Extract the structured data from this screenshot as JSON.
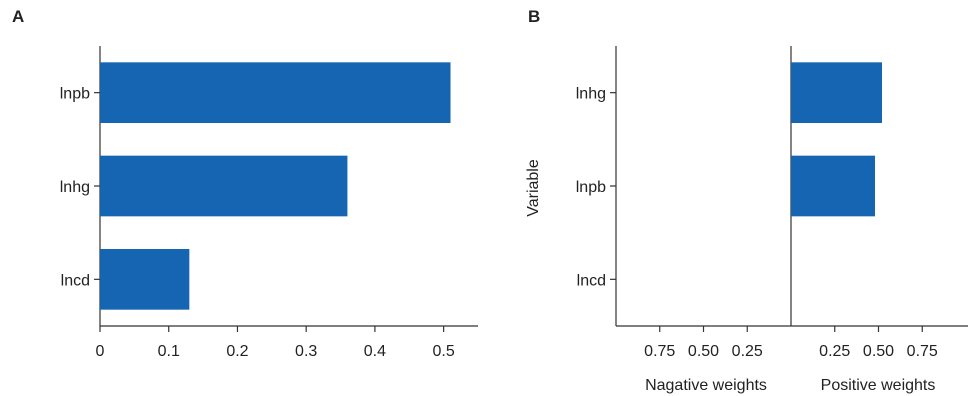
{
  "colors": {
    "bar": "#1565b3",
    "axis": "#333333",
    "text": "#222222"
  },
  "chart_data": [
    {
      "panel": "A",
      "type": "bar",
      "orientation": "horizontal",
      "categories": [
        "lnpb",
        "lnhg",
        "lncd"
      ],
      "values": [
        0.51,
        0.36,
        0.13
      ],
      "xlim": [
        0,
        0.55
      ],
      "xticks": [
        "0",
        "0.1",
        "0.2",
        "0.3",
        "0.4",
        "0.5"
      ],
      "xlabel": "",
      "ylabel": "",
      "grid": false
    },
    {
      "panel": "B",
      "type": "bar",
      "orientation": "horizontal",
      "categories": [
        "lnhg",
        "lnpb",
        "lncd"
      ],
      "positive_values": [
        0.52,
        0.48,
        0
      ],
      "negative_values": [
        0,
        0,
        0
      ],
      "xlim": [
        -1,
        1
      ],
      "neg_ticks": [
        "0.75",
        "0.50",
        "0.25"
      ],
      "pos_ticks": [
        "0.25",
        "0.50",
        "0.75"
      ],
      "xlabel_negative": "Nagative weights",
      "xlabel_positive": "Positive weights",
      "ylabel": "Variable",
      "grid": false
    }
  ]
}
